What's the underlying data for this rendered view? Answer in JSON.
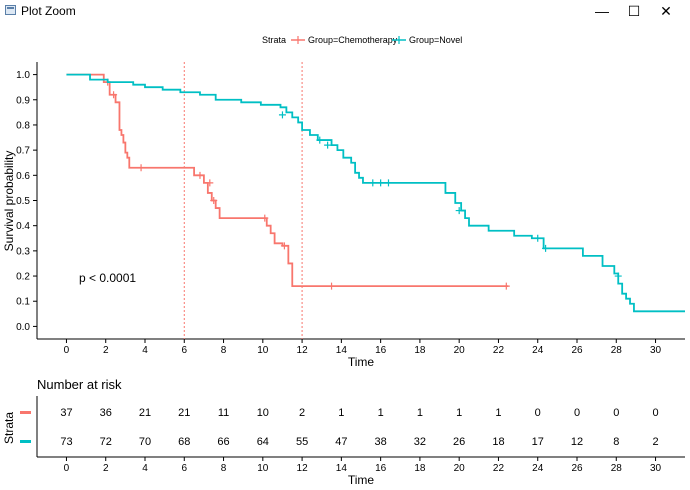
{
  "window": {
    "title": "Plot Zoom"
  },
  "legend": {
    "title": "Strata",
    "items": [
      {
        "label": "Group=Chemotherapy",
        "color": "#F8766D"
      },
      {
        "label": "Group=Novel",
        "color": "#00BFC4"
      }
    ]
  },
  "chart_data": {
    "type": "line",
    "title": "",
    "xlabel": "Time",
    "ylabel": "Survival probability",
    "xlim": [
      -1.5,
      31.5
    ],
    "ylim": [
      -0.05,
      1.05
    ],
    "xticks": [
      0,
      2,
      4,
      6,
      8,
      10,
      12,
      14,
      16,
      18,
      20,
      22,
      24,
      26,
      28,
      30
    ],
    "yticks": [
      "0.0",
      "0.1",
      "0.2",
      "0.3",
      "0.4",
      "0.5",
      "0.6",
      "0.7",
      "0.8",
      "0.9",
      "1.0"
    ],
    "annotation": "p < 0.0001",
    "reference_lines": {
      "times": [
        6,
        12
      ],
      "color": "#F8766D"
    },
    "series": [
      {
        "name": "Group=Chemotherapy",
        "color": "#F8766D",
        "steps": [
          [
            0,
            1.0
          ],
          [
            1.9,
            0.97
          ],
          [
            2.2,
            0.92
          ],
          [
            2.5,
            0.89
          ],
          [
            2.7,
            0.78
          ],
          [
            2.8,
            0.76
          ],
          [
            2.9,
            0.73
          ],
          [
            3.0,
            0.69
          ],
          [
            3.1,
            0.67
          ],
          [
            3.2,
            0.63
          ],
          [
            6.5,
            0.6
          ],
          [
            7.0,
            0.57
          ],
          [
            7.2,
            0.53
          ],
          [
            7.4,
            0.5
          ],
          [
            7.6,
            0.47
          ],
          [
            7.8,
            0.43
          ],
          [
            10.2,
            0.4
          ],
          [
            10.4,
            0.37
          ],
          [
            10.6,
            0.33
          ],
          [
            11.0,
            0.32
          ],
          [
            11.3,
            0.25
          ],
          [
            11.5,
            0.16
          ],
          [
            22.5,
            0.16
          ]
        ],
        "censored": [
          [
            2.1,
            0.97
          ],
          [
            2.4,
            0.92
          ],
          [
            3.8,
            0.63
          ],
          [
            6.8,
            0.6
          ],
          [
            7.3,
            0.57
          ],
          [
            7.5,
            0.5
          ],
          [
            10.1,
            0.43
          ],
          [
            11.1,
            0.32
          ],
          [
            13.5,
            0.16
          ],
          [
            22.4,
            0.16
          ]
        ]
      },
      {
        "name": "Group=Novel",
        "color": "#00BFC4",
        "steps": [
          [
            0,
            1.0
          ],
          [
            1.2,
            0.98
          ],
          [
            2.1,
            0.97
          ],
          [
            3.4,
            0.96
          ],
          [
            4.0,
            0.95
          ],
          [
            4.9,
            0.94
          ],
          [
            5.8,
            0.93
          ],
          [
            6.8,
            0.92
          ],
          [
            7.6,
            0.9
          ],
          [
            8.9,
            0.89
          ],
          [
            9.9,
            0.88
          ],
          [
            10.9,
            0.87
          ],
          [
            11.2,
            0.85
          ],
          [
            11.5,
            0.83
          ],
          [
            11.8,
            0.81
          ],
          [
            12.0,
            0.78
          ],
          [
            12.4,
            0.76
          ],
          [
            12.8,
            0.74
          ],
          [
            13.5,
            0.72
          ],
          [
            13.8,
            0.7
          ],
          [
            14.1,
            0.67
          ],
          [
            14.5,
            0.65
          ],
          [
            14.7,
            0.61
          ],
          [
            14.9,
            0.59
          ],
          [
            15.1,
            0.57
          ],
          [
            19.3,
            0.53
          ],
          [
            19.8,
            0.49
          ],
          [
            20.1,
            0.46
          ],
          [
            20.3,
            0.43
          ],
          [
            20.5,
            0.4
          ],
          [
            21.5,
            0.38
          ],
          [
            22.8,
            0.36
          ],
          [
            23.7,
            0.35
          ],
          [
            24.3,
            0.31
          ],
          [
            26.3,
            0.28
          ],
          [
            27.3,
            0.24
          ],
          [
            27.9,
            0.21
          ],
          [
            28.1,
            0.17
          ],
          [
            28.3,
            0.13
          ],
          [
            28.5,
            0.11
          ],
          [
            28.7,
            0.09
          ],
          [
            28.9,
            0.06
          ],
          [
            31.5,
            0.06
          ]
        ],
        "censored": [
          [
            11.0,
            0.84
          ],
          [
            12.9,
            0.74
          ],
          [
            13.3,
            0.72
          ],
          [
            15.6,
            0.57
          ],
          [
            16.0,
            0.57
          ],
          [
            16.4,
            0.57
          ],
          [
            20.0,
            0.46
          ],
          [
            24.0,
            0.35
          ],
          [
            24.4,
            0.31
          ],
          [
            28.1,
            0.2
          ]
        ]
      }
    ]
  },
  "risk_table": {
    "title": "Number at risk",
    "ylabel": "Strata",
    "xlabel": "Time",
    "times": [
      0,
      2,
      4,
      6,
      8,
      10,
      12,
      14,
      16,
      18,
      20,
      22,
      24,
      26,
      28,
      30
    ],
    "rows": [
      {
        "color": "#F8766D",
        "values": [
          37,
          36,
          21,
          21,
          11,
          10,
          2,
          1,
          1,
          1,
          1,
          1,
          0,
          0,
          0,
          0
        ]
      },
      {
        "color": "#00BFC4",
        "values": [
          73,
          72,
          70,
          68,
          66,
          64,
          55,
          47,
          38,
          32,
          26,
          18,
          17,
          12,
          8,
          2
        ]
      }
    ]
  }
}
